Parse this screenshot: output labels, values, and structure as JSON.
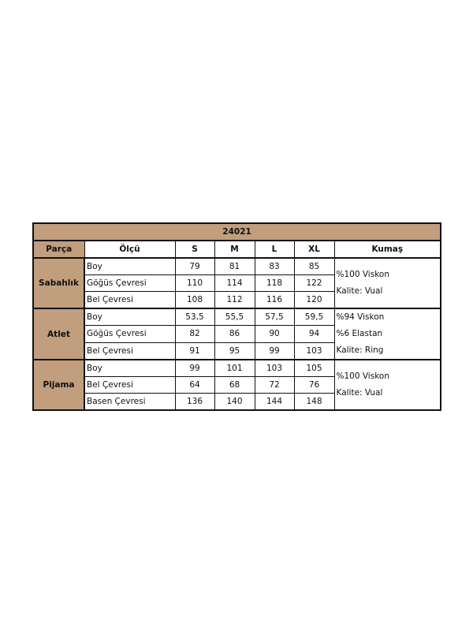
{
  "title": "24021",
  "headers": [
    "Parça",
    "Ölçü",
    "S",
    "M",
    "L",
    "XL",
    "Kumaş"
  ],
  "colors": {
    "header_fill": "#c19e7e",
    "border": "#111111"
  },
  "groups": [
    {
      "part": "Sabahlık",
      "rows": [
        {
          "measure": "Boy",
          "values": [
            "79",
            "81",
            "83",
            "85"
          ]
        },
        {
          "measure": "Göğüs Çevresi",
          "values": [
            "110",
            "114",
            "118",
            "122"
          ]
        },
        {
          "measure": "Bel Çevresi",
          "values": [
            "108",
            "112",
            "116",
            "120"
          ]
        }
      ],
      "fabric": [
        "%100 Viskon",
        "Kalite: Vual"
      ]
    },
    {
      "part": "Atlet",
      "rows": [
        {
          "measure": "Boy",
          "values": [
            "53,5",
            "55,5",
            "57,5",
            "59,5"
          ]
        },
        {
          "measure": "Göğüs Çevresi",
          "values": [
            "82",
            "86",
            "90",
            "94"
          ]
        },
        {
          "measure": "Bel Çevresi",
          "values": [
            "91",
            "95",
            "99",
            "103"
          ]
        }
      ],
      "fabric": [
        "%94 Viskon",
        "%6 Elastan",
        "Kalite: Ring"
      ]
    },
    {
      "part": "Pijama",
      "rows": [
        {
          "measure": "Boy",
          "values": [
            "99",
            "101",
            "103",
            "105"
          ]
        },
        {
          "measure": "Bel Çevresi",
          "values": [
            "64",
            "68",
            "72",
            "76"
          ]
        },
        {
          "measure": "Basen Çevresi",
          "values": [
            "136",
            "140",
            "144",
            "148"
          ]
        }
      ],
      "fabric": [
        "%100 Viskon",
        "Kalite: Vual"
      ]
    }
  ]
}
